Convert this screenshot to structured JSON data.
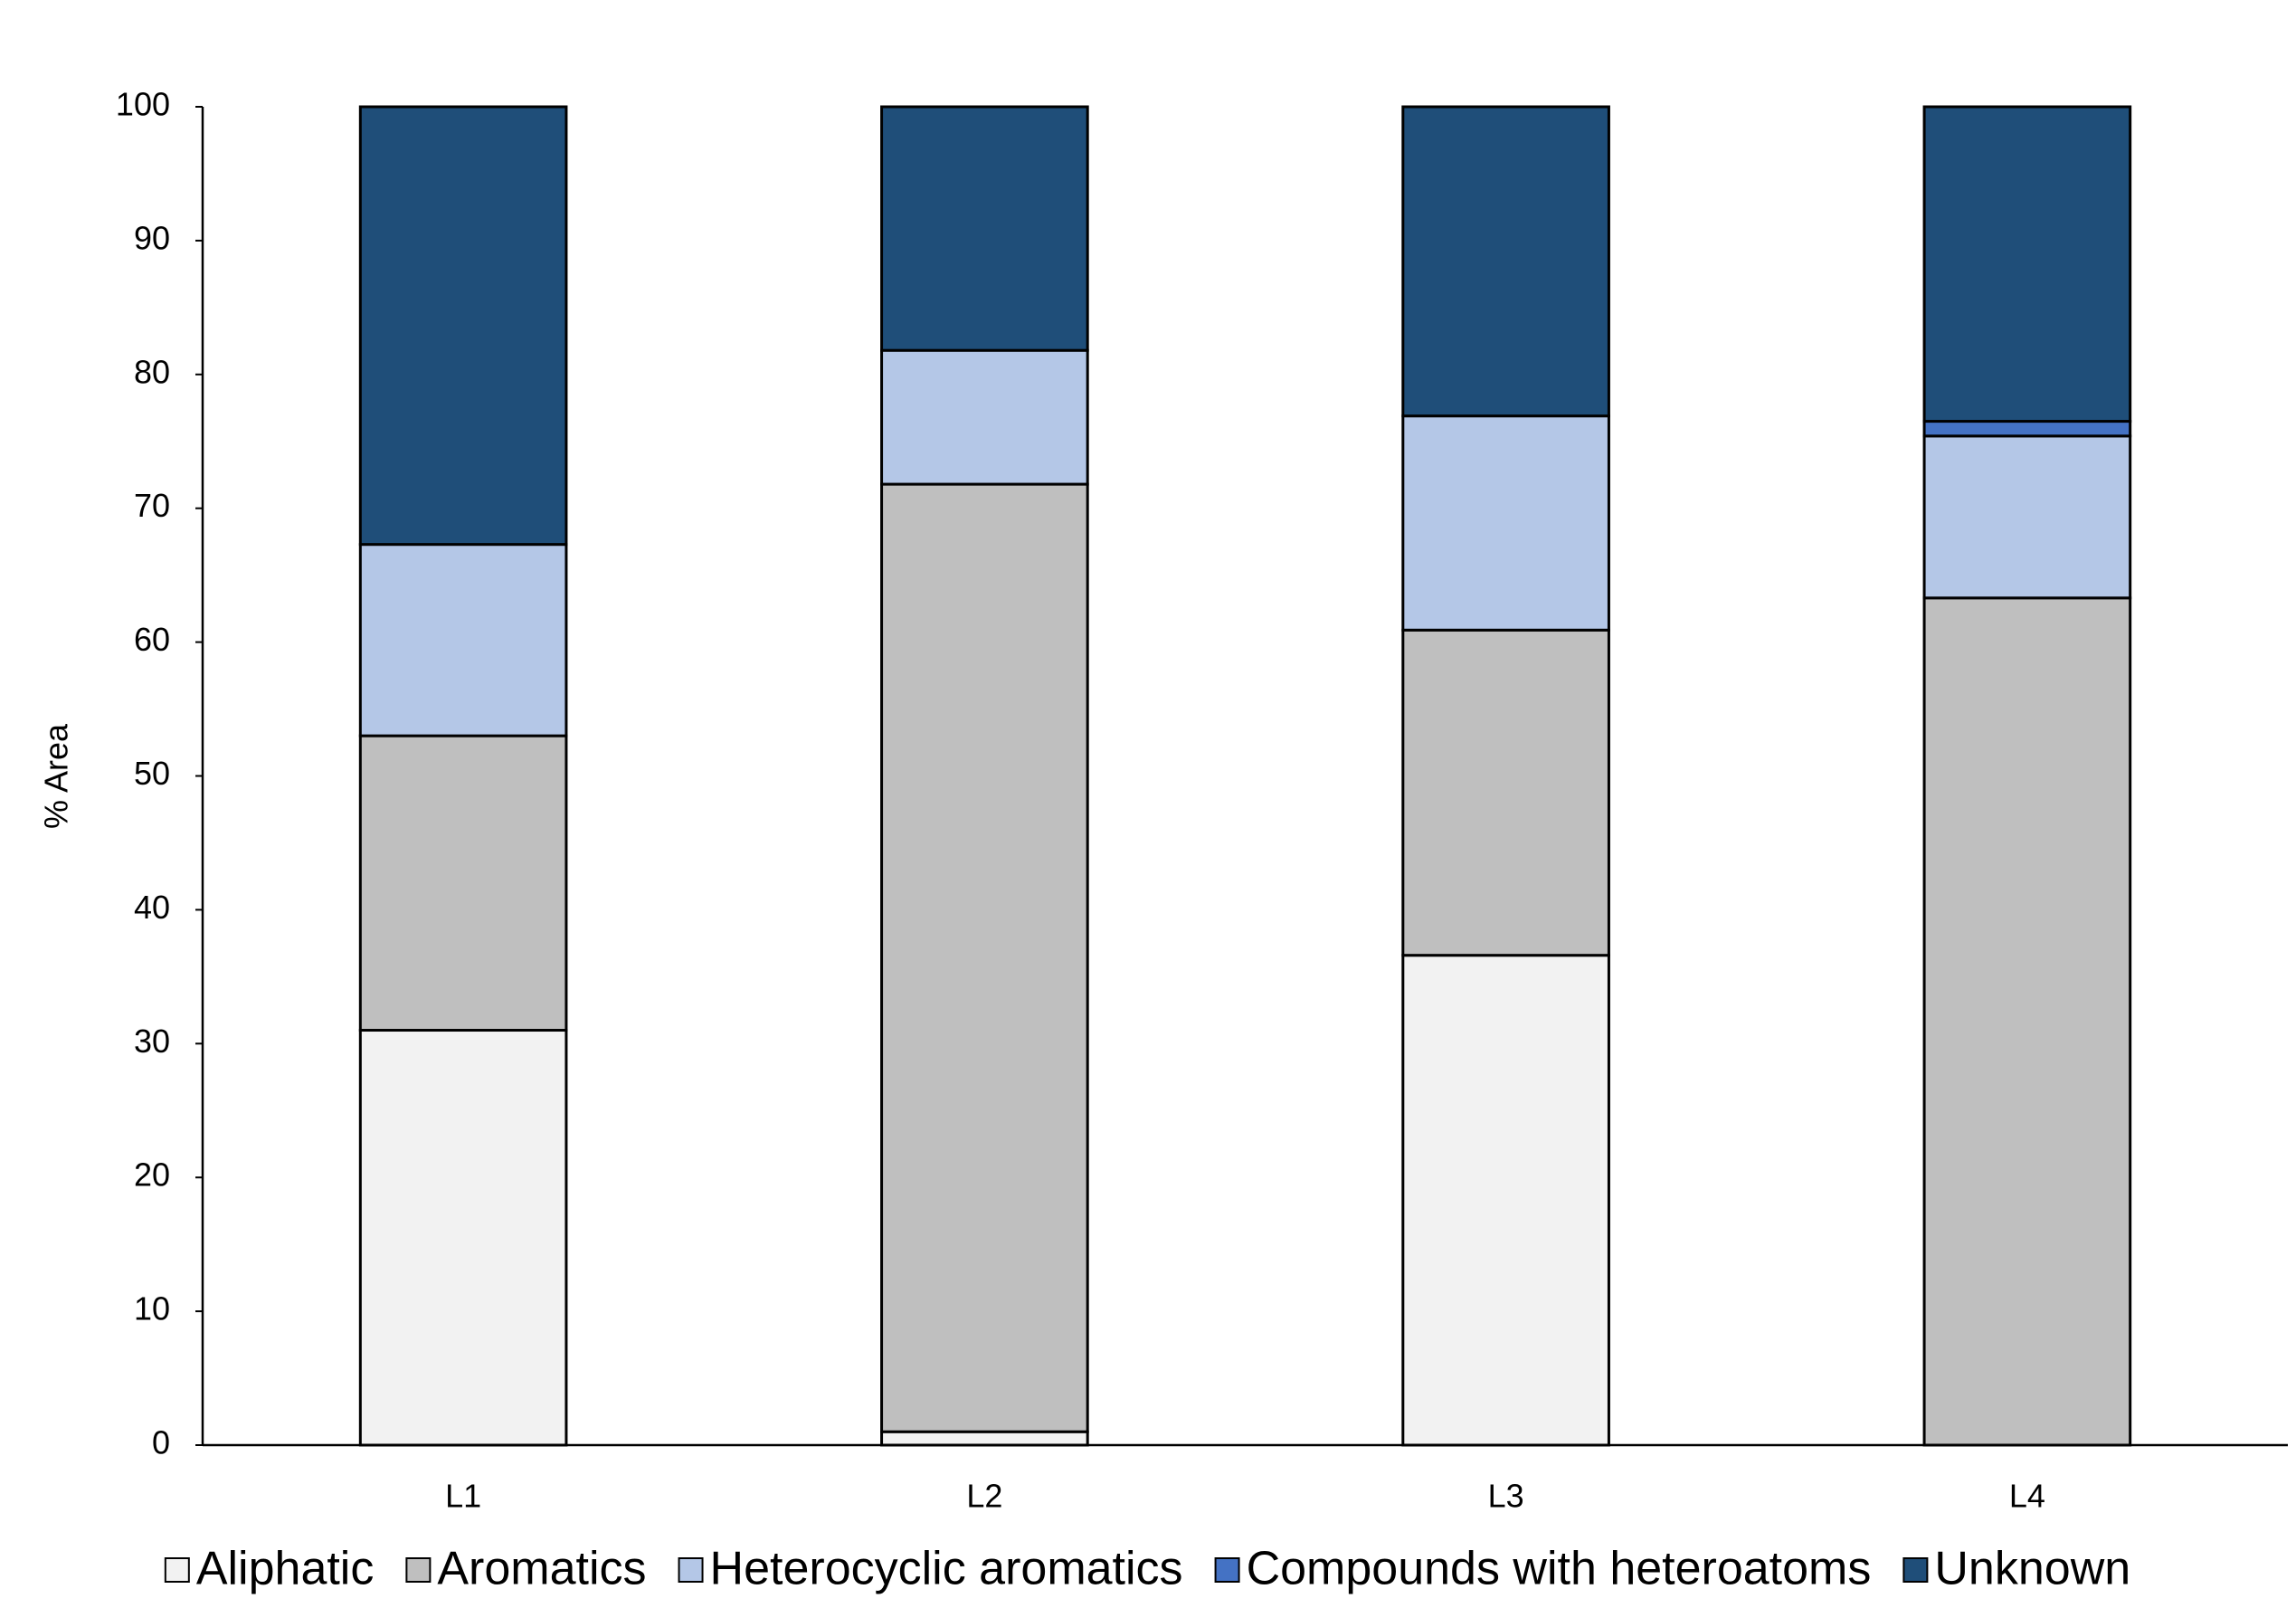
{
  "chart_data": {
    "type": "stacked_bar",
    "y_label": "% Area",
    "categories": [
      "L1",
      "L2",
      "L3",
      "L4"
    ],
    "series": [
      {
        "name": "Aliphatic",
        "color": "#f2f2f2",
        "values": [
          31,
          1,
          36.6,
          0
        ]
      },
      {
        "name": "Aromatics",
        "color": "#bfbfbf",
        "values": [
          22,
          70.8,
          24.3,
          63.3
        ]
      },
      {
        "name": "Heterocyclic aromatics",
        "color": "#b4c7e7",
        "values": [
          14.3,
          10,
          16,
          12.1
        ]
      },
      {
        "name": "Compounds with heteroatoms",
        "color": "#4472c4",
        "values": [
          0,
          0,
          0,
          1.1
        ]
      },
      {
        "name": "Unknown",
        "color": "#1f4e79",
        "values": [
          32.7,
          18.2,
          23.1,
          23.5
        ]
      }
    ],
    "ylim": [
      0,
      100
    ],
    "yticks": [
      0,
      10,
      20,
      30,
      40,
      50,
      60,
      70,
      80,
      90,
      100
    ],
    "legend": "bottom"
  }
}
